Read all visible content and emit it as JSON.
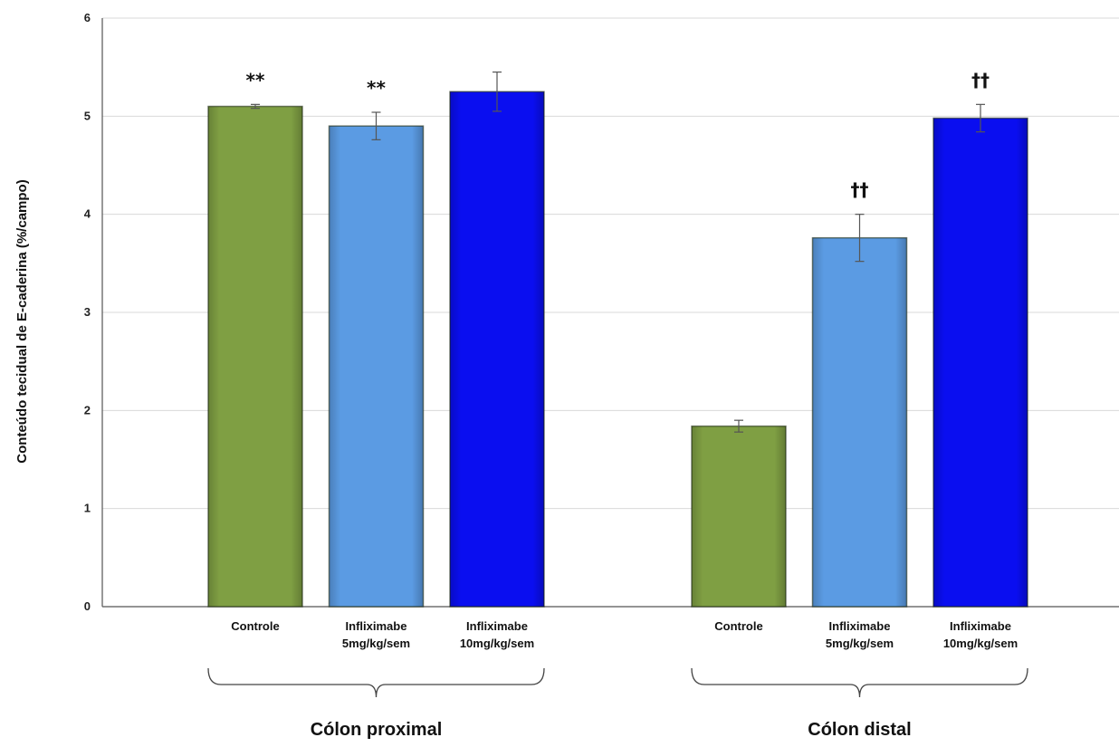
{
  "chart_data": {
    "type": "bar",
    "title": "",
    "ylabel": "Conteúdo tecidual de E-caderina (%/campo)",
    "ylim": [
      0,
      6
    ],
    "yticks": [
      "0",
      "1",
      "2",
      "3",
      "4",
      "5",
      "6"
    ],
    "grid": true,
    "groups": [
      {
        "name": "Cólon proximal",
        "bars": [
          {
            "label": [
              "Controle"
            ],
            "value": 5.1,
            "error": 0.02,
            "color": "#7f9f43",
            "annotation": "**"
          },
          {
            "label": [
              "Infliximabe",
              "5mg/kg/sem"
            ],
            "value": 4.9,
            "error": 0.14,
            "color": "#5b9be3",
            "annotation": "**"
          },
          {
            "label": [
              "Infliximabe",
              "10mg/kg/sem"
            ],
            "value": 5.25,
            "error": 0.2,
            "color": "#0a0ef0",
            "annotation": ""
          }
        ]
      },
      {
        "name": "Cólon distal",
        "bars": [
          {
            "label": [
              "Controle"
            ],
            "value": 1.84,
            "error": 0.06,
            "color": "#7f9f43",
            "annotation": ""
          },
          {
            "label": [
              "Infliximabe",
              "5mg/kg/sem"
            ],
            "value": 3.76,
            "error": 0.24,
            "color": "#5b9be3",
            "annotation": "††"
          },
          {
            "label": [
              "Infliximabe",
              "10mg/kg/sem"
            ],
            "value": 4.98,
            "error": 0.14,
            "color": "#0a0ef0",
            "annotation": "††"
          }
        ]
      }
    ]
  }
}
